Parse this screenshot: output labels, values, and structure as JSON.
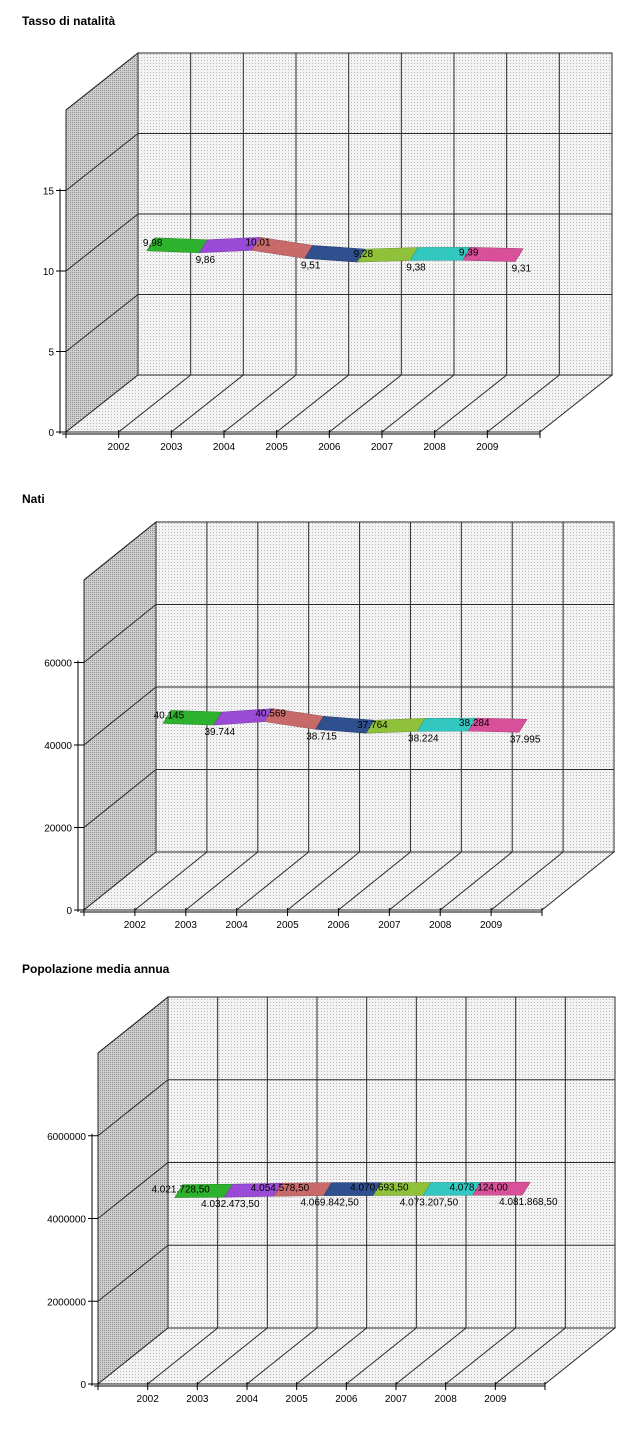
{
  "chart_data": [
    {
      "type": "line",
      "title": "Tasso di natalità",
      "categories": [
        "2002",
        "2003",
        "2004",
        "2005",
        "2006",
        "2007",
        "2008",
        "2009"
      ],
      "values": [
        9.98,
        9.86,
        10.01,
        9.51,
        9.28,
        9.38,
        9.39,
        9.31
      ],
      "value_labels": [
        "9,98",
        "9,86",
        "10,01",
        "9,51",
        "9,28",
        "9,38",
        "9,39",
        "9,31"
      ],
      "y_ticks": [
        0,
        5,
        10,
        15
      ],
      "y_tick_labels": [
        "0",
        "5",
        "10",
        "15"
      ],
      "ylim": [
        0,
        20
      ],
      "grid": true,
      "style": "3d-ribbon",
      "segment_colors": [
        "#2db22d",
        "#9a4ad6",
        "#c96a6a",
        "#2f4f8f",
        "#8fc23a",
        "#32c8c0",
        "#d9509a"
      ]
    },
    {
      "type": "line",
      "title": "Nati",
      "categories": [
        "2002",
        "2003",
        "2004",
        "2005",
        "2006",
        "2007",
        "2008",
        "2009"
      ],
      "values": [
        40145,
        39744,
        40569,
        38715,
        37764,
        38224,
        38284,
        37995
      ],
      "value_labels": [
        "40.145",
        "39.744",
        "40.569",
        "38.715",
        "37.764",
        "38.224",
        "38.284",
        "37.995"
      ],
      "y_ticks": [
        0,
        20000,
        40000,
        60000
      ],
      "y_tick_labels": [
        "0",
        "20000",
        "40000",
        "60000"
      ],
      "ylim": [
        0,
        80000
      ],
      "grid": true,
      "style": "3d-ribbon",
      "segment_colors": [
        "#2db22d",
        "#9a4ad6",
        "#c96a6a",
        "#2f4f8f",
        "#8fc23a",
        "#32c8c0",
        "#d9509a"
      ]
    },
    {
      "type": "line",
      "title": "Popolazione media annua",
      "categories": [
        "2002",
        "2003",
        "2004",
        "2005",
        "2006",
        "2007",
        "2008",
        "2009"
      ],
      "values": [
        4021728.5,
        4032473.5,
        4054578.5,
        4069842.5,
        4070693.5,
        4073207.5,
        4078124.0,
        4081868.5
      ],
      "value_labels": [
        "4.021.728,50",
        "4.032.473,50",
        "4.054.578,50",
        "4.069.842,50",
        "4.070.693,50",
        "4.073.207,50",
        "4.078.124,00",
        "4.081.868,50"
      ],
      "y_ticks": [
        0,
        2000000,
        4000000,
        6000000
      ],
      "y_tick_labels": [
        "0",
        "2000000",
        "4000000",
        "6000000"
      ],
      "ylim": [
        0,
        8000000
      ],
      "grid": true,
      "style": "3d-ribbon",
      "segment_colors": [
        "#2db22d",
        "#9a4ad6",
        "#c96a6a",
        "#2f4f8f",
        "#8fc23a",
        "#32c8c0",
        "#d9509a"
      ]
    }
  ]
}
